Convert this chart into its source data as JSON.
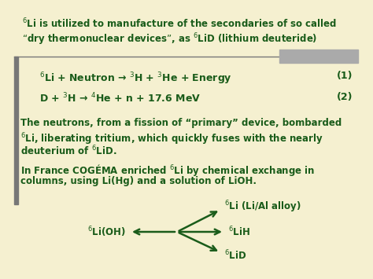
{
  "bg_color": "#f5f0d0",
  "text_color": "#1a5c1a",
  "figsize": [
    4.74,
    3.55
  ],
  "dpi": 100,
  "para1_line1": "$^{6}$Li is utilized to manufacture of the secondaries of so called",
  "para1_line2": "“dry thermonuclear devices”, as $^{6}$LiD (lithium deuteride)",
  "eq1_left": "$^{6}$Li + Neutron → $^{3}$H + $^{3}$He + Energy",
  "eq1_right": "(1)",
  "eq2_left": "D + $^{3}$H → $^{4}$He + n + 17.6 MeV",
  "eq2_right": "(2)",
  "para2_line1": "The neutrons, from a fission of “primary” device, bombarded",
  "para2_line2": "$^{6}$Li, liberating tritium, which quickly fuses with the nearly",
  "para2_line3": "deuterium of $^{6}$LiD.",
  "para3_line1": "In France COGÉMA enriched $^{6}$Li by chemical exchange in",
  "para3_line2": "columns, using Li(Hg) and a solution of LiOH.",
  "label_lioh": "$^{6}$Li(OH)",
  "label_alloy": "$^{6}$Li (Li/Al alloy)",
  "label_lih": "$^{6}$LiH",
  "label_lid": "$^{6}$LiD",
  "bar_color": "#888888",
  "bar2_color": "#aaaaaa"
}
